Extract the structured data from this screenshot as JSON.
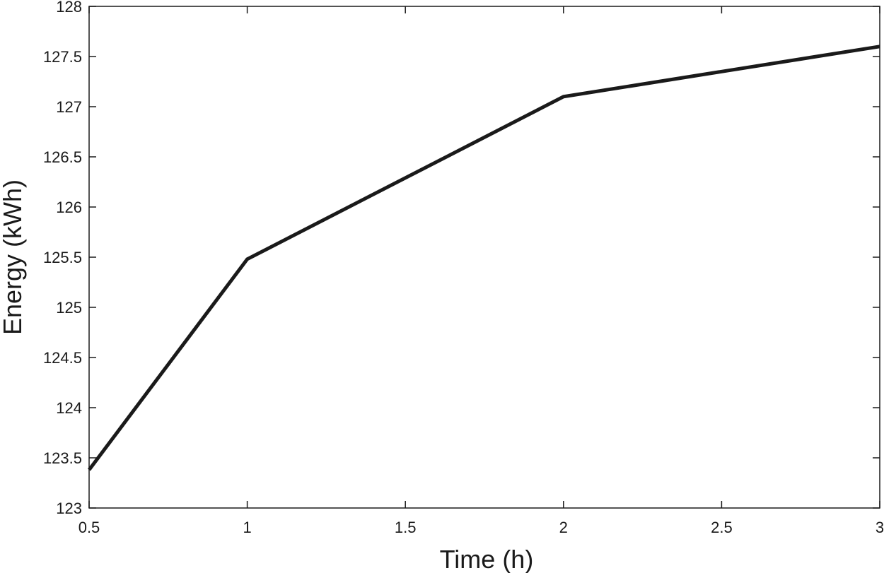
{
  "chart_data": {
    "type": "line",
    "title": "",
    "xlabel": "Time (h)",
    "ylabel": "Energy (kWh)",
    "xlim": [
      0.5,
      3
    ],
    "ylim": [
      123,
      128
    ],
    "xticks": [
      "0.5",
      "1",
      "1.5",
      "2",
      "2.5",
      "3"
    ],
    "yticks": [
      "123",
      "123.5",
      "124",
      "124.5",
      "125",
      "125.5",
      "126",
      "126.5",
      "127",
      "127.5",
      "128"
    ],
    "grid": false,
    "series": [
      {
        "color": "#1a1a1a",
        "x": [
          0.5,
          1,
          2,
          3
        ],
        "y": [
          123.38,
          125.48,
          127.1,
          127.6
        ]
      }
    ]
  }
}
